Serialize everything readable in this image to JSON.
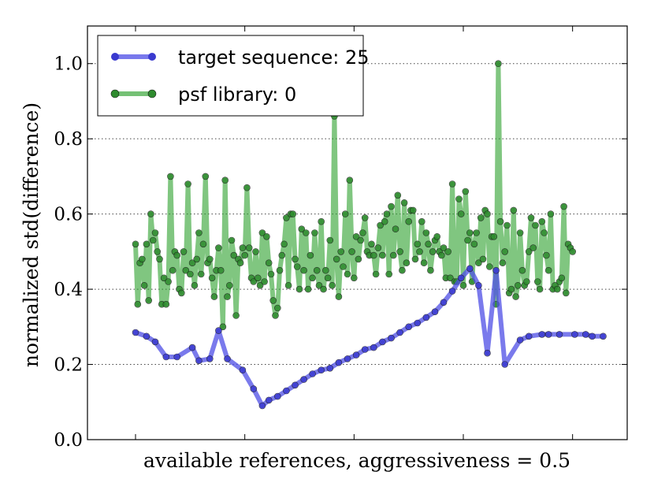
{
  "chart_data": {
    "type": "line",
    "title": "",
    "xlabel": "available references, aggressiveness = 0.5",
    "ylabel": "normalized std(difference)",
    "xlim": [
      -22,
      225
    ],
    "ylim": [
      0.0,
      1.1
    ],
    "yticks": [
      0.0,
      0.2,
      0.4,
      0.6,
      0.8,
      1.0
    ],
    "ytick_labels": [
      "0.0",
      "0.2",
      "0.4",
      "0.6",
      "0.8",
      "1.0"
    ],
    "grid": "y-dotted",
    "legend": {
      "placement": "top-left"
    },
    "series": [
      {
        "name": "target sequence: 25",
        "color": "#4d4de6",
        "x": [
          0,
          5,
          9,
          14,
          19,
          26,
          29,
          34,
          38,
          42,
          49,
          54,
          58,
          61,
          65,
          69,
          73,
          77,
          81,
          85,
          89,
          93,
          97,
          101,
          105,
          109,
          113,
          117,
          121,
          125,
          129,
          133,
          137,
          141,
          145,
          149,
          153,
          157,
          161,
          165,
          169,
          176,
          180,
          186,
          189,
          194,
          201,
          206,
          209,
          214
        ],
        "values": [
          0.285,
          0.275,
          0.26,
          0.22,
          0.22,
          0.245,
          0.21,
          0.215,
          0.29,
          0.215,
          0.185,
          0.135,
          0.09,
          0.105,
          0.115,
          0.13,
          0.145,
          0.16,
          0.175,
          0.185,
          0.19,
          0.205,
          0.215,
          0.225,
          0.24,
          0.245,
          0.26,
          0.27,
          0.285,
          0.3,
          0.31,
          0.325,
          0.34,
          0.365,
          0.395,
          0.43,
          0.455,
          0.41,
          0.23,
          0.45,
          0.2,
          0.265,
          0.275,
          0.28,
          0.28,
          0.28,
          0.28,
          0.28,
          0.275,
          0.275
        ]
      },
      {
        "name": "psf library: 0",
        "color": "#2ca02c",
        "x": [
          0,
          1,
          2,
          3,
          4,
          5,
          6,
          7,
          8,
          9,
          10,
          11,
          12,
          13,
          14,
          15,
          16,
          17,
          18,
          19,
          20,
          21,
          22,
          23,
          24,
          25,
          26,
          27,
          28,
          29,
          30,
          31,
          32,
          33,
          34,
          35,
          36,
          37,
          38,
          39,
          40,
          41,
          42,
          43,
          44,
          45,
          46,
          47,
          48,
          49,
          50,
          51,
          52,
          53,
          54,
          55,
          56,
          57,
          58,
          59,
          60,
          61,
          62,
          63,
          64,
          65,
          66,
          67,
          68,
          69,
          70,
          71,
          72,
          73,
          74,
          75,
          76,
          77,
          78,
          79,
          80,
          81,
          82,
          83,
          84,
          85,
          86,
          87,
          88,
          89,
          90,
          91,
          92,
          93,
          94,
          95,
          96,
          97,
          98,
          99,
          100,
          101,
          102,
          103,
          104,
          105,
          106,
          107,
          108,
          109,
          110,
          111,
          112,
          113,
          114,
          115,
          116,
          117,
          118,
          119,
          120,
          121,
          122,
          123,
          124,
          125,
          126,
          127,
          128,
          129,
          130,
          131,
          132,
          133,
          134,
          135,
          136,
          137,
          138,
          139,
          140,
          141,
          142,
          143,
          144,
          145,
          146,
          147,
          148,
          149,
          150,
          151,
          152,
          153,
          154,
          155,
          156,
          157,
          158,
          159,
          160,
          161,
          162,
          163,
          164,
          165,
          166,
          167,
          168,
          169,
          170,
          171,
          172,
          173,
          174,
          175,
          176,
          177,
          178,
          179,
          180,
          181,
          182,
          183,
          184,
          185,
          186,
          187,
          188,
          189,
          190,
          191,
          192,
          193,
          194,
          195,
          196,
          197,
          198,
          199,
          200
        ],
        "values": [
          0.52,
          0.36,
          0.47,
          0.48,
          0.41,
          0.52,
          0.37,
          0.6,
          0.53,
          0.55,
          0.5,
          0.48,
          0.36,
          0.43,
          0.36,
          0.42,
          0.7,
          0.45,
          0.5,
          0.49,
          0.4,
          0.39,
          0.5,
          0.45,
          0.68,
          0.44,
          0.47,
          0.41,
          0.48,
          0.55,
          0.44,
          0.52,
          0.7,
          0.47,
          0.48,
          0.43,
          0.38,
          0.45,
          0.51,
          0.45,
          0.3,
          0.69,
          0.38,
          0.41,
          0.53,
          0.49,
          0.33,
          0.48,
          0.47,
          0.51,
          0.49,
          0.67,
          0.51,
          0.43,
          0.42,
          0.5,
          0.43,
          0.41,
          0.55,
          0.42,
          0.54,
          0.47,
          0.44,
          0.37,
          0.33,
          0.35,
          0.45,
          0.49,
          0.52,
          0.59,
          0.41,
          0.6,
          0.6,
          0.48,
          0.46,
          0.4,
          0.56,
          0.45,
          0.55,
          0.4,
          0.49,
          0.43,
          0.55,
          0.45,
          0.41,
          0.58,
          0.4,
          0.45,
          0.43,
          0.53,
          0.41,
          0.86,
          0.48,
          0.38,
          0.5,
          0.46,
          0.6,
          0.44,
          0.69,
          0.5,
          0.43,
          0.54,
          0.48,
          0.53,
          0.55,
          0.59,
          0.5,
          0.49,
          0.52,
          0.49,
          0.44,
          0.51,
          0.57,
          0.49,
          0.58,
          0.6,
          0.44,
          0.62,
          0.49,
          0.56,
          0.65,
          0.5,
          0.45,
          0.63,
          0.47,
          0.58,
          0.61,
          0.61,
          0.48,
          0.52,
          0.5,
          0.58,
          0.47,
          0.55,
          0.52,
          0.45,
          0.5,
          0.53,
          0.54,
          0.5,
          0.49,
          0.51,
          0.43,
          0.5,
          0.43,
          0.68,
          0.42,
          0.42,
          0.64,
          0.6,
          0.41,
          0.66,
          0.53,
          0.55,
          0.42,
          0.52,
          0.55,
          0.47,
          0.59,
          0.48,
          0.61,
          0.6,
          0.46,
          0.54,
          0.54,
          0.36,
          1.0,
          0.58,
          0.47,
          0.5,
          0.57,
          0.39,
          0.4,
          0.61,
          0.38,
          0.41,
          0.55,
          0.45,
          0.41,
          0.42,
          0.5,
          0.59,
          0.51,
          0.57,
          0.42,
          0.4,
          0.58,
          0.55,
          0.49,
          0.45,
          0.6,
          0.4,
          0.41,
          0.4,
          0.42,
          0.43,
          0.62,
          0.39,
          0.52,
          0.51,
          0.5
        ],
        "note": "approximate"
      }
    ]
  }
}
